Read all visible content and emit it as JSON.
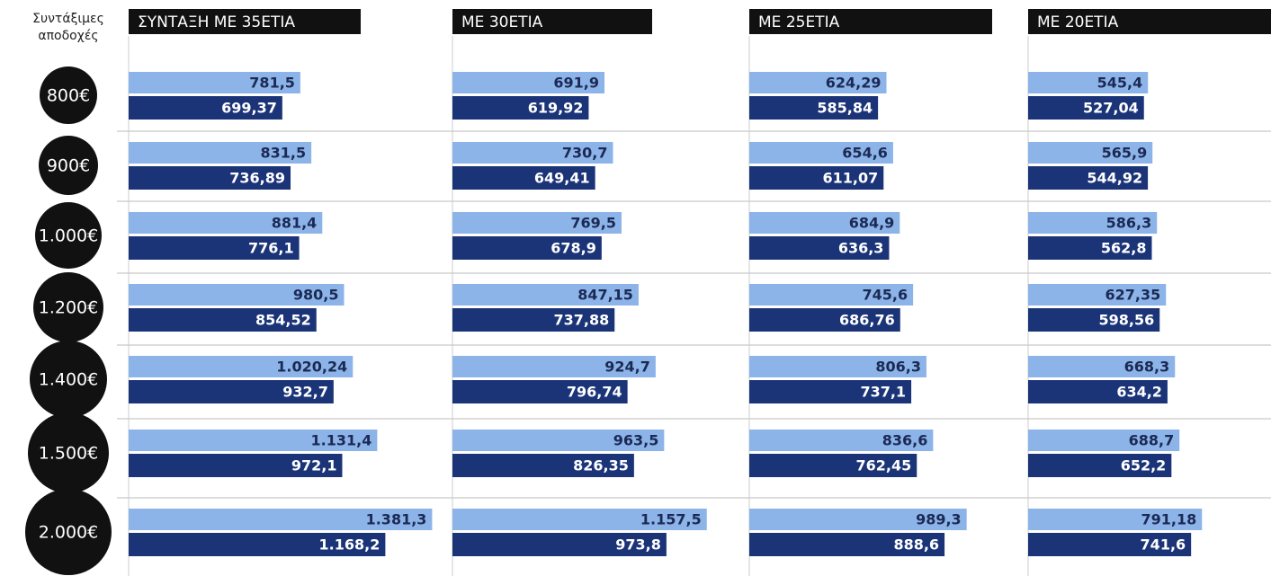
{
  "chart_data": {
    "type": "bar",
    "y_label": "Συντάξιμες αποδοχές",
    "categories": [
      "800€",
      "900€",
      "1.000€",
      "1.200€",
      "1.400€",
      "1.500€",
      "2.000€"
    ],
    "xlim": [
      0,
      1400
    ],
    "panels": [
      {
        "title": "ΣΥΝΤΑΞΗ ΜΕ 35ΕΤΙΑ",
        "series": [
          {
            "color": "#8db4e8",
            "values": [
              781.5,
              831.5,
              881.4,
              980.5,
              1020.24,
              1131.4,
              1381.3
            ],
            "value_labels": [
              "781,5",
              "831,5",
              "881,4",
              "980,5",
              "1.020,24",
              "1.131,4",
              "1.381,3"
            ]
          },
          {
            "color": "#1b3478",
            "values": [
              699.37,
              736.89,
              776.1,
              854.52,
              932.7,
              972.1,
              1168.2
            ],
            "value_labels": [
              "699,37",
              "736,89",
              "776,1",
              "854,52",
              "932,7",
              "972,1",
              "1.168,2"
            ]
          }
        ]
      },
      {
        "title": "ΜΕ 30ΕΤΙΑ",
        "series": [
          {
            "color": "#8db4e8",
            "values": [
              691.9,
              730.7,
              769.5,
              847.15,
              924.7,
              963.5,
              1157.5
            ],
            "value_labels": [
              "691,9",
              "730,7",
              "769,5",
              "847,15",
              "924,7",
              "963,5",
              "1.157,5"
            ]
          },
          {
            "color": "#1b3478",
            "values": [
              619.92,
              649.41,
              678.9,
              737.88,
              796.74,
              826.35,
              973.8
            ],
            "value_labels": [
              "619,92",
              "649,41",
              "678,9",
              "737,88",
              "796,74",
              "826,35",
              "973,8"
            ]
          }
        ]
      },
      {
        "title": "ΜΕ 25ΕΤΙΑ",
        "series": [
          {
            "color": "#8db4e8",
            "values": [
              624.29,
              654.6,
              684.9,
              745.6,
              806.3,
              836.6,
              989.3
            ],
            "value_labels": [
              "624,29",
              "654,6",
              "684,9",
              "745,6",
              "806,3",
              "836,6",
              "989,3"
            ]
          },
          {
            "color": "#1b3478",
            "values": [
              585.84,
              611.07,
              636.3,
              686.76,
              737.1,
              762.45,
              888.6
            ],
            "value_labels": [
              "585,84",
              "611,07",
              "636,3",
              "686,76",
              "737,1",
              "762,45",
              "888,6"
            ]
          }
        ]
      },
      {
        "title": "ΜΕ 20ΕΤΙΑ",
        "series": [
          {
            "color": "#8db4e8",
            "values": [
              545.4,
              565.9,
              586.3,
              627.35,
              668.3,
              688.7,
              791.18
            ],
            "value_labels": [
              "545,4",
              "565,9",
              "586,3",
              "627,35",
              "668,3",
              "688,7",
              "791,18"
            ]
          },
          {
            "color": "#1b3478",
            "values": [
              527.04,
              544.92,
              562.8,
              598.56,
              634.2,
              652.2,
              741.6
            ],
            "value_labels": [
              "527,04",
              "544,92",
              "562,8",
              "598,56",
              "634,2",
              "652,2",
              "741,6"
            ]
          }
        ]
      }
    ]
  }
}
